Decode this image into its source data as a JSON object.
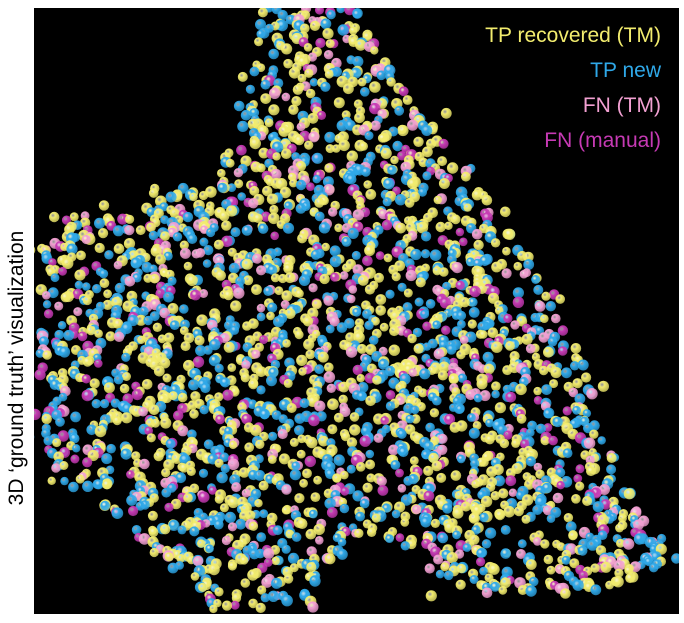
{
  "side_label": "3D ‘ground truth’ visualization",
  "legend": [
    {
      "label": "TP recovered (TM)",
      "color": "#f2ec6e"
    },
    {
      "label": "TP new",
      "color": "#2fa8e8"
    },
    {
      "label": "FN (TM)",
      "color": "#f2a0d2"
    },
    {
      "label": "FN (manual)",
      "color": "#c63ab4"
    }
  ],
  "colors": {
    "background": "#000000",
    "tp_recovered": "#f2ec6e",
    "tp_new": "#2fa8e8",
    "fn_tm": "#f2a0d2",
    "fn_manual": "#c63ab4"
  }
}
